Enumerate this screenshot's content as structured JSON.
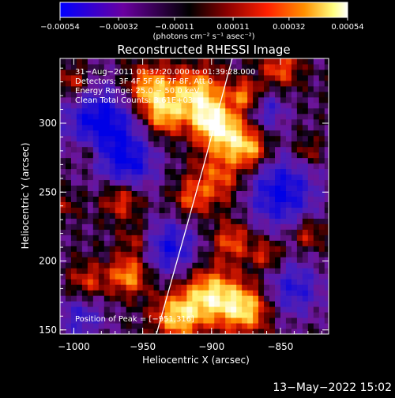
{
  "chart_data": {
    "type": "heatmap",
    "title": "Reconstructed RHESSI Image",
    "xlabel": "Heliocentric X (arcsec)",
    "ylabel": "Heliocentric Y (arcsec)",
    "xlim": [
      -1010,
      -815
    ],
    "ylim": [
      147,
      347
    ],
    "x_ticks": [
      -1000,
      -950,
      -900,
      -850
    ],
    "y_ticks": [
      150,
      200,
      250,
      300
    ],
    "x_tick_labels": [
      "−1000",
      "−950",
      "−900",
      "−850"
    ],
    "y_tick_labels": [
      "150",
      "200",
      "250",
      "300"
    ],
    "colorbar": {
      "range": [
        -0.00054,
        0.00054
      ],
      "ticks": [
        -0.00054,
        -0.00032,
        -0.00011,
        0.00011,
        0.00032,
        0.00054
      ],
      "tick_labels": [
        "−0.00054",
        "−0.00032",
        "−0.00011",
        "0.00011",
        "0.00032",
        "0.00054"
      ],
      "unit_label": "(photons cm⁻² s⁻¹ asec⁻²)",
      "colors": [
        "#0000ff",
        "#6a00a0",
        "#000000",
        "#8a0000",
        "#ff2000",
        "#ff9000",
        "#ffff80",
        "#ffffff"
      ]
    },
    "annotations": [
      "31−Aug−2011 01:37:20.000 to 01:39:28.000",
      "Detectors: 3F 4F 5F 6F 7F 8F, Att 0",
      "Energy Range: 25.0 − 50.0 keV",
      "Clean    Total Counts: 3.61E+03"
    ],
    "peak_label": "Position of Peak = [−951,316]",
    "peak": [
      -951,
      316
    ],
    "limb_curve": [
      [
        -940,
        147
      ],
      [
        -920,
        218
      ],
      [
        -905,
        272
      ],
      [
        -885,
        347
      ]
    ],
    "grid": false
  },
  "footer": {
    "date": "13−May−2022 15:02"
  }
}
